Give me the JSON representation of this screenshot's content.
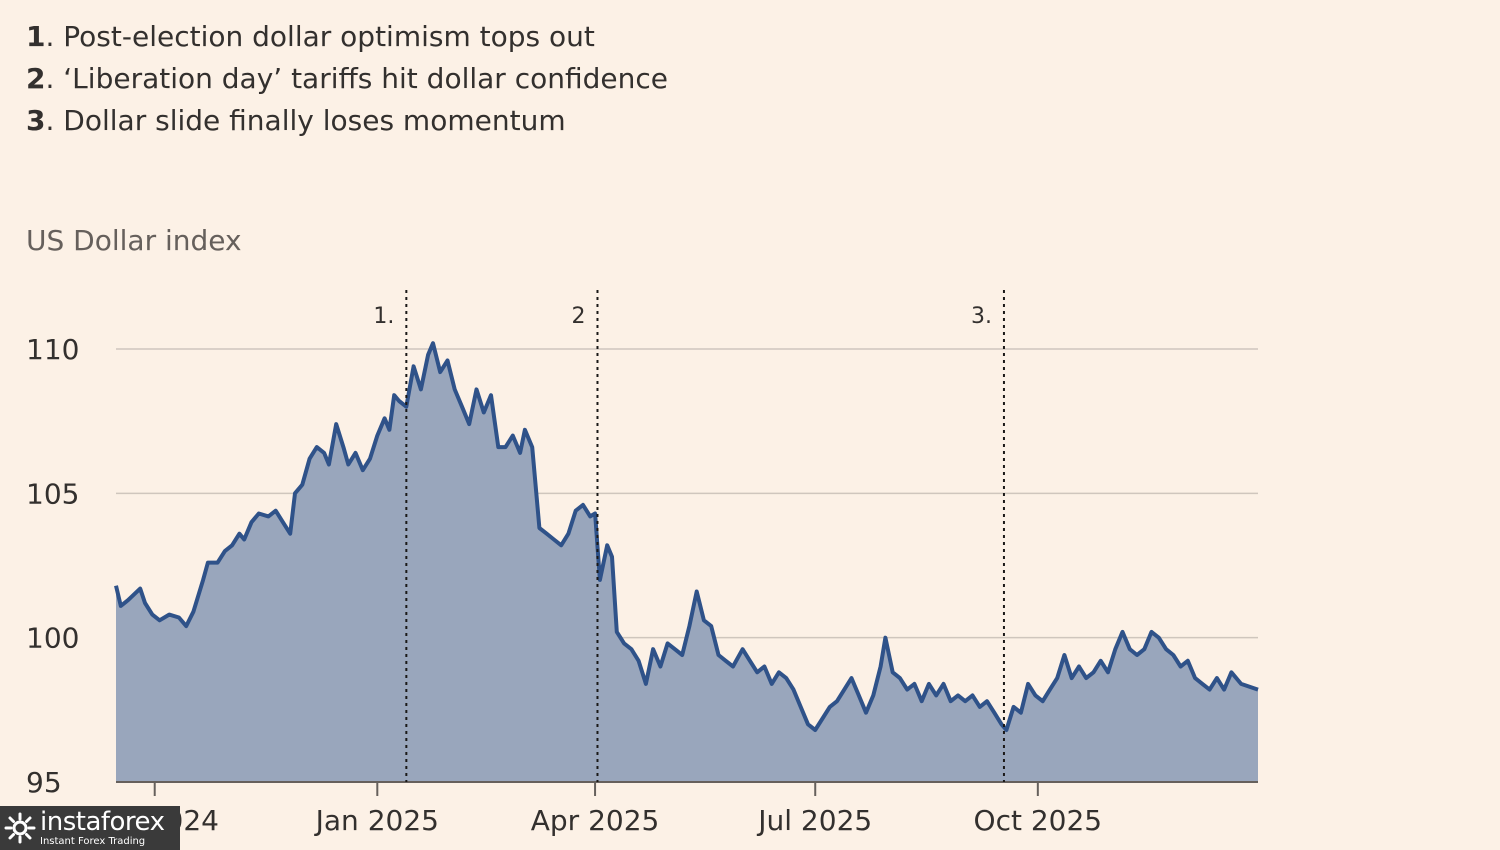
{
  "annotations_list": [
    {
      "num": "1",
      "text": ". Post-election dollar optimism tops out"
    },
    {
      "num": "2",
      "text": ". ‘Liberation day’ tariffs hit dollar confidence"
    },
    {
      "num": "3",
      "text": ". Dollar slide finally loses momentum"
    }
  ],
  "chart_data": {
    "type": "area",
    "ylabel": "US Dollar index",
    "ylim": [
      95,
      110
    ],
    "yticks": [
      95,
      100,
      105,
      110
    ],
    "xlim": [
      "2024-09-15",
      "2025-12-31"
    ],
    "xticks": [
      {
        "date": "2024-10-01",
        "label": "Oct 2024"
      },
      {
        "date": "2025-01-01",
        "label": "Jan 2025"
      },
      {
        "date": "2025-04-01",
        "label": "Apr 2025"
      },
      {
        "date": "2025-07-01",
        "label": "Jul 2025"
      },
      {
        "date": "2025-10-01",
        "label": "Oct 2025"
      }
    ],
    "events": [
      {
        "date": "2025-01-13",
        "label": "1."
      },
      {
        "date": "2025-04-02",
        "label": "2"
      },
      {
        "date": "2025-09-17",
        "label": "3."
      }
    ],
    "line_color": "#2f5289",
    "fill_color": "#99a6bc",
    "grid": true,
    "series": [
      {
        "points": [
          [
            "2024-09-15",
            101.8
          ],
          [
            "2024-09-17",
            101.1
          ],
          [
            "2024-09-20",
            101.3
          ],
          [
            "2024-09-25",
            101.7
          ],
          [
            "2024-09-27",
            101.2
          ],
          [
            "2024-09-30",
            100.8
          ],
          [
            "2024-10-03",
            100.6
          ],
          [
            "2024-10-07",
            100.8
          ],
          [
            "2024-10-11",
            100.7
          ],
          [
            "2024-10-14",
            100.4
          ],
          [
            "2024-10-17",
            100.9
          ],
          [
            "2024-10-21",
            102.0
          ],
          [
            "2024-10-23",
            102.6
          ],
          [
            "2024-10-27",
            102.6
          ],
          [
            "2024-10-30",
            103.0
          ],
          [
            "2024-11-02",
            103.2
          ],
          [
            "2024-11-05",
            103.6
          ],
          [
            "2024-11-07",
            103.4
          ],
          [
            "2024-11-10",
            104.0
          ],
          [
            "2024-11-13",
            104.3
          ],
          [
            "2024-11-17",
            104.2
          ],
          [
            "2024-11-20",
            104.4
          ],
          [
            "2024-11-23",
            104.0
          ],
          [
            "2024-11-26",
            103.6
          ],
          [
            "2024-11-28",
            105.0
          ],
          [
            "2024-12-01",
            105.3
          ],
          [
            "2024-12-04",
            106.2
          ],
          [
            "2024-12-07",
            106.6
          ],
          [
            "2024-12-10",
            106.4
          ],
          [
            "2024-12-12",
            106.0
          ],
          [
            "2024-12-15",
            107.4
          ],
          [
            "2024-12-18",
            106.6
          ],
          [
            "2024-12-20",
            106.0
          ],
          [
            "2024-12-23",
            106.4
          ],
          [
            "2024-12-26",
            105.8
          ],
          [
            "2024-12-29",
            106.2
          ],
          [
            "2025-01-01",
            107.0
          ],
          [
            "2025-01-04",
            107.6
          ],
          [
            "2025-01-06",
            107.2
          ],
          [
            "2025-01-08",
            108.4
          ],
          [
            "2025-01-10",
            108.2
          ],
          [
            "2025-01-13",
            108.0
          ],
          [
            "2025-01-16",
            109.4
          ],
          [
            "2025-01-19",
            108.6
          ],
          [
            "2025-01-22",
            109.8
          ],
          [
            "2025-01-24",
            110.2
          ],
          [
            "2025-01-27",
            109.2
          ],
          [
            "2025-01-30",
            109.6
          ],
          [
            "2025-02-02",
            108.6
          ],
          [
            "2025-02-05",
            108.0
          ],
          [
            "2025-02-08",
            107.4
          ],
          [
            "2025-02-11",
            108.6
          ],
          [
            "2025-02-14",
            107.8
          ],
          [
            "2025-02-17",
            108.4
          ],
          [
            "2025-02-20",
            106.6
          ],
          [
            "2025-02-23",
            106.6
          ],
          [
            "2025-02-26",
            107.0
          ],
          [
            "2025-03-01",
            106.4
          ],
          [
            "2025-03-03",
            107.2
          ],
          [
            "2025-03-06",
            106.6
          ],
          [
            "2025-03-09",
            103.8
          ],
          [
            "2025-03-12",
            103.6
          ],
          [
            "2025-03-15",
            103.4
          ],
          [
            "2025-03-18",
            103.2
          ],
          [
            "2025-03-21",
            103.6
          ],
          [
            "2025-03-24",
            104.4
          ],
          [
            "2025-03-27",
            104.6
          ],
          [
            "2025-03-30",
            104.2
          ],
          [
            "2025-04-01",
            104.3
          ],
          [
            "2025-04-03",
            102.0
          ],
          [
            "2025-04-06",
            103.2
          ],
          [
            "2025-04-08",
            102.8
          ],
          [
            "2025-04-10",
            100.2
          ],
          [
            "2025-04-13",
            99.8
          ],
          [
            "2025-04-16",
            99.6
          ],
          [
            "2025-04-19",
            99.2
          ],
          [
            "2025-04-22",
            98.4
          ],
          [
            "2025-04-25",
            99.6
          ],
          [
            "2025-04-28",
            99.0
          ],
          [
            "2025-05-01",
            99.8
          ],
          [
            "2025-05-04",
            99.6
          ],
          [
            "2025-05-07",
            99.4
          ],
          [
            "2025-05-10",
            100.4
          ],
          [
            "2025-05-13",
            101.6
          ],
          [
            "2025-05-16",
            100.6
          ],
          [
            "2025-05-19",
            100.4
          ],
          [
            "2025-05-22",
            99.4
          ],
          [
            "2025-05-25",
            99.2
          ],
          [
            "2025-05-28",
            99.0
          ],
          [
            "2025-06-01",
            99.6
          ],
          [
            "2025-06-04",
            99.2
          ],
          [
            "2025-06-07",
            98.8
          ],
          [
            "2025-06-10",
            99.0
          ],
          [
            "2025-06-13",
            98.4
          ],
          [
            "2025-06-16",
            98.8
          ],
          [
            "2025-06-19",
            98.6
          ],
          [
            "2025-06-22",
            98.2
          ],
          [
            "2025-06-25",
            97.6
          ],
          [
            "2025-06-28",
            97.0
          ],
          [
            "2025-07-01",
            96.8
          ],
          [
            "2025-07-04",
            97.2
          ],
          [
            "2025-07-07",
            97.6
          ],
          [
            "2025-07-10",
            97.8
          ],
          [
            "2025-07-13",
            98.2
          ],
          [
            "2025-07-16",
            98.6
          ],
          [
            "2025-07-19",
            98.0
          ],
          [
            "2025-07-22",
            97.4
          ],
          [
            "2025-07-25",
            98.0
          ],
          [
            "2025-07-28",
            99.0
          ],
          [
            "2025-07-30",
            100.0
          ],
          [
            "2025-08-02",
            98.8
          ],
          [
            "2025-08-05",
            98.6
          ],
          [
            "2025-08-08",
            98.2
          ],
          [
            "2025-08-11",
            98.4
          ],
          [
            "2025-08-14",
            97.8
          ],
          [
            "2025-08-17",
            98.4
          ],
          [
            "2025-08-20",
            98.0
          ],
          [
            "2025-08-23",
            98.4
          ],
          [
            "2025-08-26",
            97.8
          ],
          [
            "2025-08-29",
            98.0
          ],
          [
            "2025-09-01",
            97.8
          ],
          [
            "2025-09-04",
            98.0
          ],
          [
            "2025-09-07",
            97.6
          ],
          [
            "2025-09-10",
            97.8
          ],
          [
            "2025-09-13",
            97.4
          ],
          [
            "2025-09-16",
            97.0
          ],
          [
            "2025-09-18",
            96.8
          ],
          [
            "2025-09-21",
            97.6
          ],
          [
            "2025-09-24",
            97.4
          ],
          [
            "2025-09-27",
            98.4
          ],
          [
            "2025-09-30",
            98.0
          ],
          [
            "2025-10-03",
            97.8
          ],
          [
            "2025-10-06",
            98.2
          ],
          [
            "2025-10-09",
            98.6
          ],
          [
            "2025-10-12",
            99.4
          ],
          [
            "2025-10-15",
            98.6
          ],
          [
            "2025-10-18",
            99.0
          ],
          [
            "2025-10-21",
            98.6
          ],
          [
            "2025-10-24",
            98.8
          ],
          [
            "2025-10-27",
            99.2
          ],
          [
            "2025-10-30",
            98.8
          ],
          [
            "2025-11-02",
            99.6
          ],
          [
            "2025-11-05",
            100.2
          ],
          [
            "2025-11-08",
            99.6
          ],
          [
            "2025-11-11",
            99.4
          ],
          [
            "2025-11-14",
            99.6
          ],
          [
            "2025-11-17",
            100.2
          ],
          [
            "2025-11-20",
            100.0
          ],
          [
            "2025-11-23",
            99.6
          ],
          [
            "2025-11-26",
            99.4
          ],
          [
            "2025-11-29",
            99.0
          ],
          [
            "2025-12-02",
            99.2
          ],
          [
            "2025-12-05",
            98.6
          ],
          [
            "2025-12-08",
            98.4
          ],
          [
            "2025-12-11",
            98.2
          ],
          [
            "2025-12-14",
            98.6
          ],
          [
            "2025-12-17",
            98.2
          ],
          [
            "2025-12-20",
            98.8
          ],
          [
            "2025-12-24",
            98.4
          ],
          [
            "2025-12-31",
            98.2
          ]
        ]
      }
    ]
  },
  "watermark": {
    "name": "instaforex",
    "tagline": "Instant Forex Trading"
  }
}
